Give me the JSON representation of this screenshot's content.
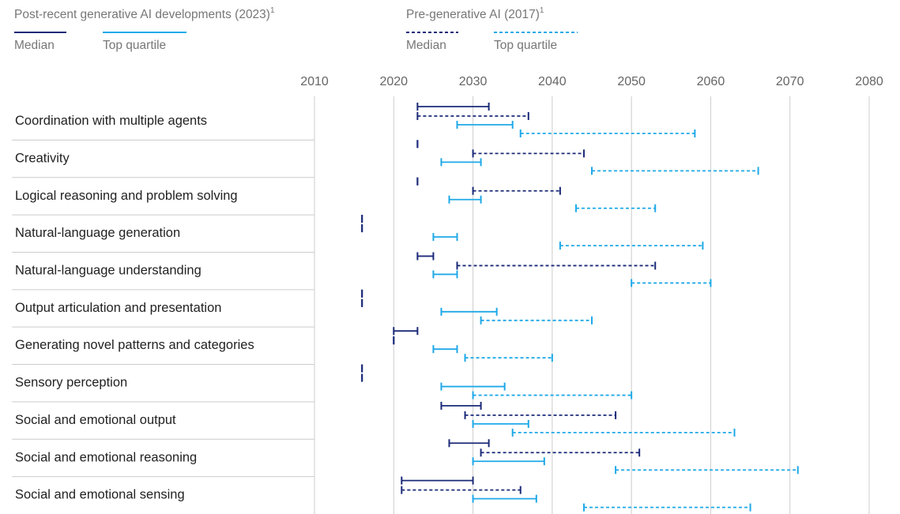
{
  "chart_data": {
    "type": "range",
    "legend_groups": [
      {
        "title": "Post-recent generative AI developments (2023)",
        "footnote": "1"
      },
      {
        "title": "Pre-generative AI (2017)",
        "footnote": "1"
      }
    ],
    "categories": [
      "Coordination with multiple agents",
      "Creativity",
      "Logical reasoning and problem solving",
      "Natural-language generation",
      "Natural-language understanding",
      "Output articulation and presentation",
      "Generating novel patterns and categories",
      "Sensory perception",
      "Social and emotional output",
      "Social and emotional reasoning",
      "Social and emotional sensing"
    ],
    "xlim": [
      2010,
      2080
    ],
    "xticks": [
      2010,
      2020,
      2030,
      2040,
      2050,
      2060,
      2070,
      2080
    ],
    "grid": true,
    "series": [
      {
        "name": "Median",
        "group": 0,
        "color": "#1b2a78",
        "dashed": false,
        "values": [
          [
            2023,
            2032
          ],
          [
            2023,
            2023
          ],
          [
            2023,
            2023
          ],
          [
            2016,
            2016
          ],
          [
            2023,
            2025
          ],
          [
            2016,
            2016
          ],
          [
            2020,
            2023
          ],
          [
            2016,
            2016
          ],
          [
            2026,
            2031
          ],
          [
            2027,
            2032
          ],
          [
            2021,
            2030
          ]
        ]
      },
      {
        "name": "Median",
        "group": 1,
        "color": "#1b2a78",
        "dashed": true,
        "values": [
          [
            2023,
            2037
          ],
          [
            2030,
            2044
          ],
          [
            2030,
            2041
          ],
          [
            2016,
            2016
          ],
          [
            2028,
            2053
          ],
          [
            2016,
            2016
          ],
          [
            2020,
            2020
          ],
          [
            2016,
            2016
          ],
          [
            2029,
            2048
          ],
          [
            2031,
            2051
          ],
          [
            2021,
            2036
          ]
        ]
      },
      {
        "name": "Top quartile",
        "group": 0,
        "color": "#1ea9e8",
        "dashed": false,
        "values": [
          [
            2028,
            2035
          ],
          [
            2026,
            2031
          ],
          [
            2027,
            2031
          ],
          [
            2025,
            2028
          ],
          [
            2025,
            2028
          ],
          [
            2026,
            2033
          ],
          [
            2025,
            2028
          ],
          [
            2026,
            2034
          ],
          [
            2030,
            2037
          ],
          [
            2030,
            2039
          ],
          [
            2030,
            2038
          ]
        ]
      },
      {
        "name": "Top quartile",
        "group": 1,
        "color": "#1ea9e8",
        "dashed": true,
        "values": [
          [
            2036,
            2058
          ],
          [
            2045,
            2066
          ],
          [
            2043,
            2053
          ],
          [
            2041,
            2059
          ],
          [
            2050,
            2060
          ],
          [
            2031,
            2045
          ],
          [
            2029,
            2040
          ],
          [
            2030,
            2050
          ],
          [
            2035,
            2063
          ],
          [
            2048,
            2071
          ],
          [
            2044,
            2065
          ]
        ]
      }
    ]
  }
}
